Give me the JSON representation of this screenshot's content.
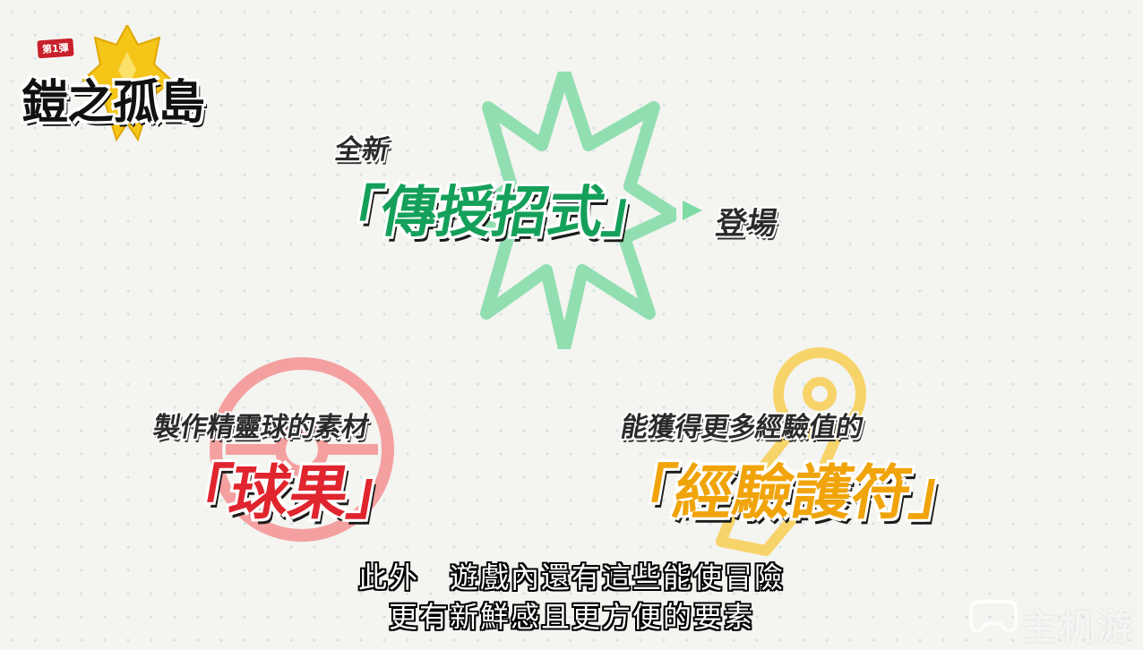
{
  "logo": {
    "badge": "第1彈",
    "title": "鎧之孤島"
  },
  "feature_moves": {
    "line1": "全新",
    "highlight": "「傳授招式」",
    "suffix": "登場"
  },
  "feature_berries": {
    "caption": "製作精靈球的素材",
    "highlight": "「球果」"
  },
  "feature_charm": {
    "caption": "能獲得更多經驗值的",
    "highlight": "「經驗護符」"
  },
  "subtitles": {
    "line1": "此外　遊戲內還有這些能使冒險",
    "line2": "更有新鮮感且更方便的要素"
  },
  "watermark": {
    "text": "主机游"
  },
  "colors": {
    "green": "#14a05a",
    "red": "#e0252e",
    "gold": "#f0a40a",
    "logo_gold": "#f5c518"
  },
  "icons": [
    "crown-shield-icon",
    "starburst-icon",
    "pokeball-icon",
    "exp-charm-icon",
    "controller-icon"
  ]
}
